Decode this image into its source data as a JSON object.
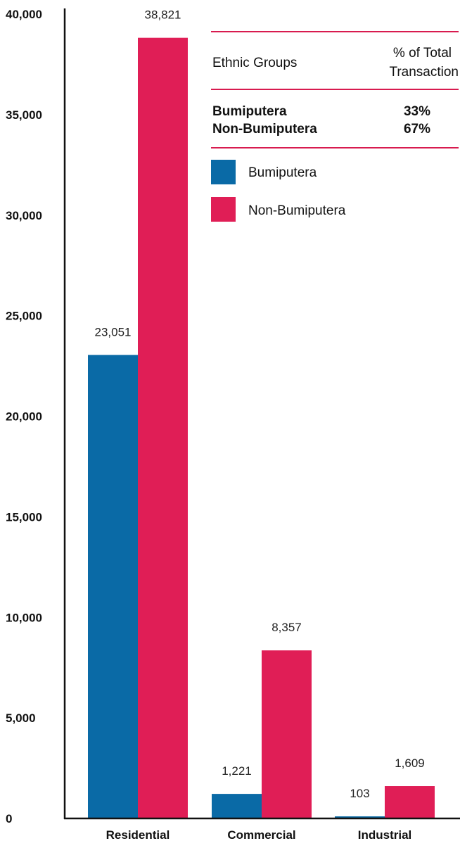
{
  "chart_data": {
    "type": "bar",
    "categories": [
      "Residential",
      "Commercial",
      "Industrial"
    ],
    "series": [
      {
        "name": "Bumiputera",
        "values": [
          23051,
          1221,
          103
        ],
        "labels": [
          "23,051",
          "1,221",
          "103"
        ],
        "color": "#0a6aa6"
      },
      {
        "name": "Non-Bumiputera",
        "values": [
          38821,
          8357,
          1609
        ],
        "labels": [
          "38,821",
          "8,357",
          "1,609"
        ],
        "color": "#e01e56"
      }
    ],
    "ylim": [
      0,
      40000
    ],
    "yticks": [
      0,
      5000,
      10000,
      15000,
      20000,
      25000,
      30000,
      35000,
      40000
    ],
    "ytick_labels": [
      "0",
      "5,000",
      "10,000",
      "15,000",
      "20,000",
      "25,000",
      "30,000",
      "35,000",
      "40,000"
    ],
    "grid": false,
    "legend_position": "top-right"
  },
  "summary_table": {
    "header": {
      "col1": "Ethnic Groups",
      "col2_line1": "% of Total",
      "col2_line2": "Transaction"
    },
    "rows": [
      {
        "group": "Bumiputera",
        "percent": "33%"
      },
      {
        "group": "Non-Bumiputera",
        "percent": "67%"
      }
    ],
    "rule_color": "#d81b4f"
  }
}
